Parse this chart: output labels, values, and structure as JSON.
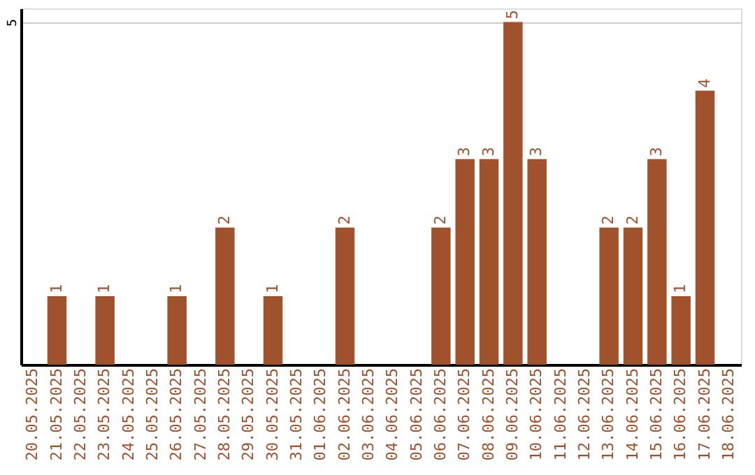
{
  "chart_data": {
    "type": "bar",
    "categories": [
      "20.05.2025",
      "21.05.2025",
      "22.05.2025",
      "23.05.2025",
      "24.05.2025",
      "25.05.2025",
      "26.05.2025",
      "27.05.2025",
      "28.05.2025",
      "29.05.2025",
      "30.05.2025",
      "31.05.2025",
      "01.06.2025",
      "02.06.2025",
      "03.06.2025",
      "04.06.2025",
      "05.06.2025",
      "06.06.2025",
      "07.06.2025",
      "08.06.2025",
      "09.06.2025",
      "10.06.2025",
      "11.06.2025",
      "12.06.2025",
      "13.06.2025",
      "14.06.2025",
      "15.06.2025",
      "16.06.2025",
      "17.06.2025",
      "18.06.2025"
    ],
    "values": [
      0,
      1,
      0,
      1,
      0,
      0,
      1,
      0,
      2,
      0,
      1,
      0,
      0,
      2,
      0,
      0,
      0,
      2,
      3,
      3,
      5,
      3,
      0,
      0,
      2,
      2,
      3,
      1,
      4,
      0
    ],
    "value_labels": [
      null,
      "1",
      null,
      "1",
      null,
      null,
      "1",
      null,
      "2",
      null,
      "1",
      null,
      null,
      "2",
      null,
      null,
      null,
      "2",
      "3",
      "3",
      "5",
      "3",
      null,
      null,
      "2",
      "2",
      "3",
      "1",
      "4",
      null
    ],
    "color": "#a0522d",
    "ylim": [
      0,
      5.2
    ],
    "yticks": [
      5
    ],
    "grid": "y"
  }
}
